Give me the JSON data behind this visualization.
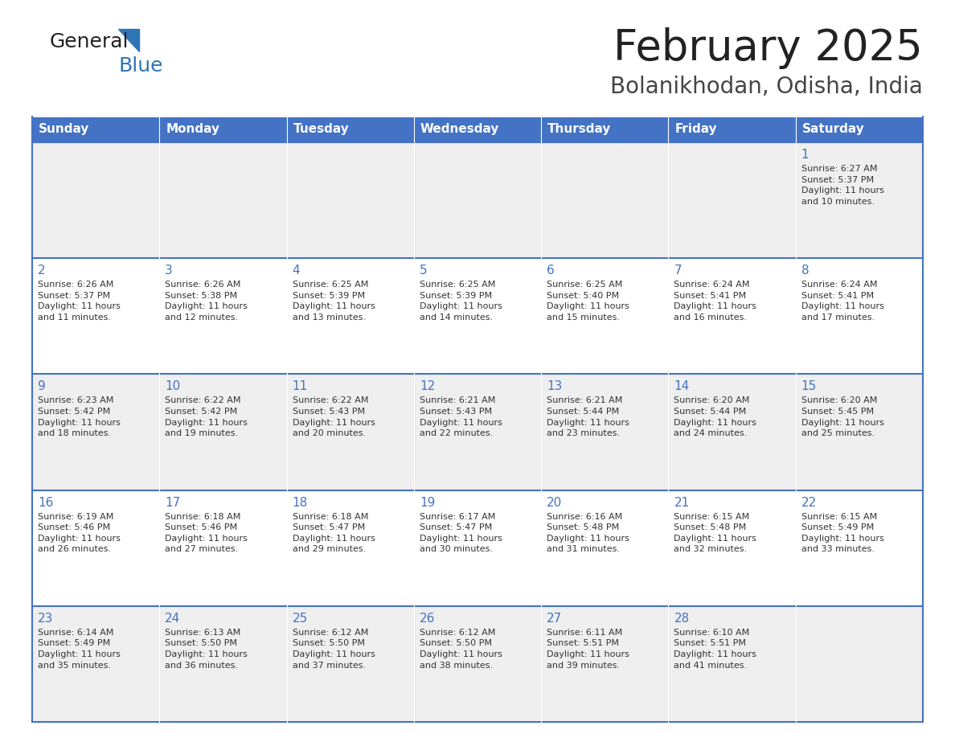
{
  "title": "February 2025",
  "subtitle": "Bolanikhodan, Odisha, India",
  "header_bg": "#4472C4",
  "header_text_color": "#FFFFFF",
  "days_of_week": [
    "Sunday",
    "Monday",
    "Tuesday",
    "Wednesday",
    "Thursday",
    "Friday",
    "Saturday"
  ],
  "row_bg_even": "#EFEFEF",
  "row_bg_odd": "#FFFFFF",
  "cell_text_color": "#333333",
  "border_color": "#4472C4",
  "logo_general_color": "#222222",
  "logo_blue_color": "#2E75B6",
  "logo_triangle_color": "#2E75B6",
  "title_color": "#222222",
  "subtitle_color": "#444444",
  "calendar": [
    [
      null,
      null,
      null,
      null,
      null,
      null,
      {
        "day": "1",
        "sunrise": "6:27 AM",
        "sunset": "5:37 PM",
        "daylight": "11 hours\nand 10 minutes."
      }
    ],
    [
      {
        "day": "2",
        "sunrise": "6:26 AM",
        "sunset": "5:37 PM",
        "daylight": "11 hours\nand 11 minutes."
      },
      {
        "day": "3",
        "sunrise": "6:26 AM",
        "sunset": "5:38 PM",
        "daylight": "11 hours\nand 12 minutes."
      },
      {
        "day": "4",
        "sunrise": "6:25 AM",
        "sunset": "5:39 PM",
        "daylight": "11 hours\nand 13 minutes."
      },
      {
        "day": "5",
        "sunrise": "6:25 AM",
        "sunset": "5:39 PM",
        "daylight": "11 hours\nand 14 minutes."
      },
      {
        "day": "6",
        "sunrise": "6:25 AM",
        "sunset": "5:40 PM",
        "daylight": "11 hours\nand 15 minutes."
      },
      {
        "day": "7",
        "sunrise": "6:24 AM",
        "sunset": "5:41 PM",
        "daylight": "11 hours\nand 16 minutes."
      },
      {
        "day": "8",
        "sunrise": "6:24 AM",
        "sunset": "5:41 PM",
        "daylight": "11 hours\nand 17 minutes."
      }
    ],
    [
      {
        "day": "9",
        "sunrise": "6:23 AM",
        "sunset": "5:42 PM",
        "daylight": "11 hours\nand 18 minutes."
      },
      {
        "day": "10",
        "sunrise": "6:22 AM",
        "sunset": "5:42 PM",
        "daylight": "11 hours\nand 19 minutes."
      },
      {
        "day": "11",
        "sunrise": "6:22 AM",
        "sunset": "5:43 PM",
        "daylight": "11 hours\nand 20 minutes."
      },
      {
        "day": "12",
        "sunrise": "6:21 AM",
        "sunset": "5:43 PM",
        "daylight": "11 hours\nand 22 minutes."
      },
      {
        "day": "13",
        "sunrise": "6:21 AM",
        "sunset": "5:44 PM",
        "daylight": "11 hours\nand 23 minutes."
      },
      {
        "day": "14",
        "sunrise": "6:20 AM",
        "sunset": "5:44 PM",
        "daylight": "11 hours\nand 24 minutes."
      },
      {
        "day": "15",
        "sunrise": "6:20 AM",
        "sunset": "5:45 PM",
        "daylight": "11 hours\nand 25 minutes."
      }
    ],
    [
      {
        "day": "16",
        "sunrise": "6:19 AM",
        "sunset": "5:46 PM",
        "daylight": "11 hours\nand 26 minutes."
      },
      {
        "day": "17",
        "sunrise": "6:18 AM",
        "sunset": "5:46 PM",
        "daylight": "11 hours\nand 27 minutes."
      },
      {
        "day": "18",
        "sunrise": "6:18 AM",
        "sunset": "5:47 PM",
        "daylight": "11 hours\nand 29 minutes."
      },
      {
        "day": "19",
        "sunrise": "6:17 AM",
        "sunset": "5:47 PM",
        "daylight": "11 hours\nand 30 minutes."
      },
      {
        "day": "20",
        "sunrise": "6:16 AM",
        "sunset": "5:48 PM",
        "daylight": "11 hours\nand 31 minutes."
      },
      {
        "day": "21",
        "sunrise": "6:15 AM",
        "sunset": "5:48 PM",
        "daylight": "11 hours\nand 32 minutes."
      },
      {
        "day": "22",
        "sunrise": "6:15 AM",
        "sunset": "5:49 PM",
        "daylight": "11 hours\nand 33 minutes."
      }
    ],
    [
      {
        "day": "23",
        "sunrise": "6:14 AM",
        "sunset": "5:49 PM",
        "daylight": "11 hours\nand 35 minutes."
      },
      {
        "day": "24",
        "sunrise": "6:13 AM",
        "sunset": "5:50 PM",
        "daylight": "11 hours\nand 36 minutes."
      },
      {
        "day": "25",
        "sunrise": "6:12 AM",
        "sunset": "5:50 PM",
        "daylight": "11 hours\nand 37 minutes."
      },
      {
        "day": "26",
        "sunrise": "6:12 AM",
        "sunset": "5:50 PM",
        "daylight": "11 hours\nand 38 minutes."
      },
      {
        "day": "27",
        "sunrise": "6:11 AM",
        "sunset": "5:51 PM",
        "daylight": "11 hours\nand 39 minutes."
      },
      {
        "day": "28",
        "sunrise": "6:10 AM",
        "sunset": "5:51 PM",
        "daylight": "11 hours\nand 41 minutes."
      },
      null
    ]
  ]
}
